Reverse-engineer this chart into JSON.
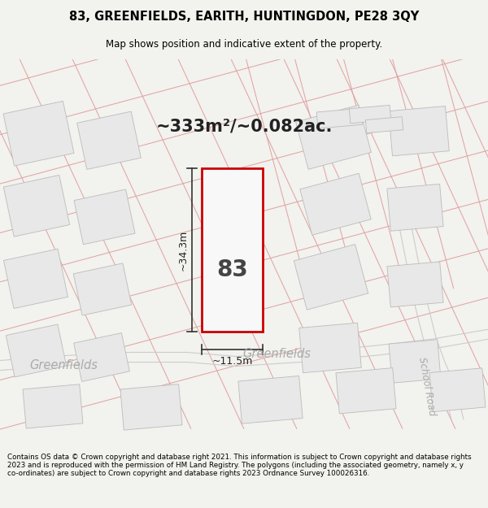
{
  "title": "83, GREENFIELDS, EARITH, HUNTINGDON, PE28 3QY",
  "subtitle": "Map shows position and indicative extent of the property.",
  "area_text": "~333m²/~0.082ac.",
  "property_number": "83",
  "dim_width": "~11.5m",
  "dim_height": "~34.3m",
  "footer": "Contains OS data © Crown copyright and database right 2021. This information is subject to Crown copyright and database rights 2023 and is reproduced with the permission of HM Land Registry. The polygons (including the associated geometry, namely x, y co-ordinates) are subject to Crown copyright and database rights 2023 Ordnance Survey 100026316.",
  "bg_color": "#f2f2ee",
  "map_bg": "#ffffff",
  "plot_fill": "#ffffff",
  "plot_edge": "#cc0000",
  "line_color": "#e0a0a0",
  "building_face": "#e8e8e8",
  "building_edge": "#bbbbbb",
  "dim_line_color": "#333333",
  "road_label_color": "#aaaaaa",
  "label_color": "#222222"
}
